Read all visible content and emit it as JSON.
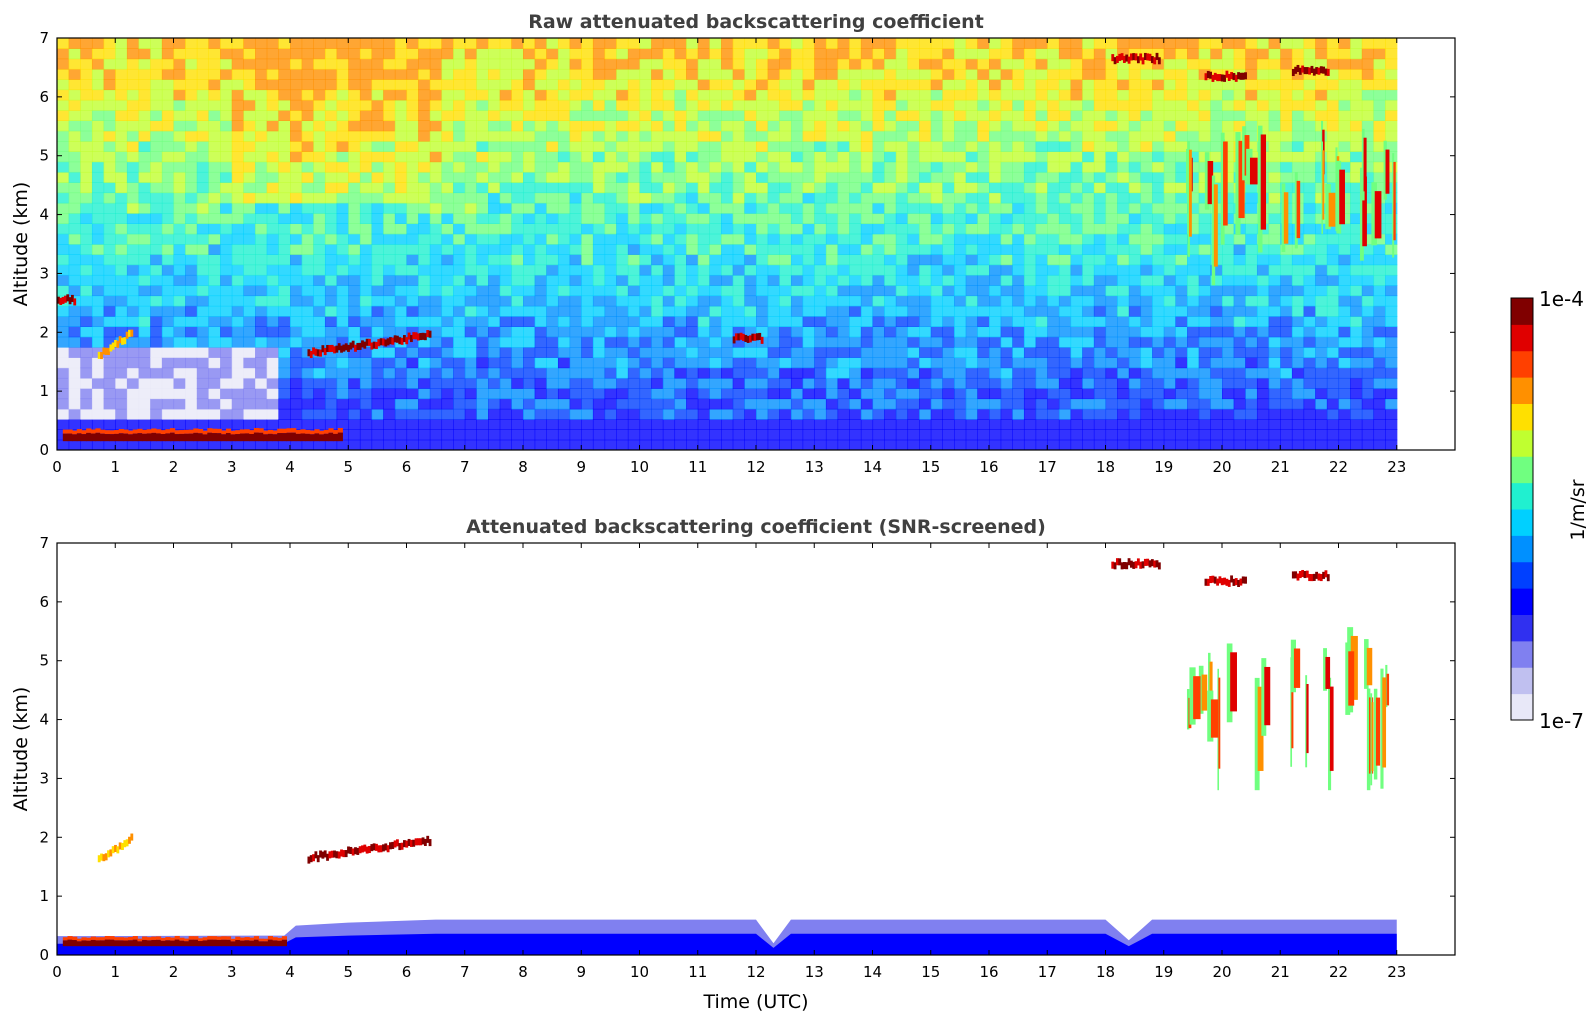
{
  "chart_data": [
    {
      "type": "heatmap",
      "title": "Raw attenuated backscattering coefficient",
      "xlabel": "",
      "ylabel": "Altitude (km)",
      "xlim": [
        0,
        24
      ],
      "ylim": [
        0,
        7
      ],
      "x_ticks": [
        "0",
        "1",
        "2",
        "3",
        "4",
        "5",
        "6",
        "7",
        "8",
        "9",
        "10",
        "11",
        "12",
        "13",
        "14",
        "15",
        "16",
        "17",
        "18",
        "19",
        "20",
        "21",
        "22",
        "23"
      ],
      "y_ticks": [
        "0",
        "1",
        "2",
        "3",
        "4",
        "5",
        "6",
        "7"
      ],
      "data_time_range": [
        0,
        23
      ],
      "grid": false,
      "features": [
        {
          "kind": "boundary_layer_aerosol",
          "t_start": 0.1,
          "t_end": 4.9,
          "alt_low": 0.15,
          "alt_high": 0.35,
          "level": "high"
        },
        {
          "kind": "low_cloud",
          "t_start": 0.0,
          "t_end": 0.3,
          "alt": 2.55,
          "level": "high"
        },
        {
          "kind": "aerosol_layer",
          "t_start": 4.3,
          "t_end": 6.4,
          "alt_start": 1.65,
          "alt_end": 1.95,
          "level": "high"
        },
        {
          "kind": "aerosol_layer",
          "t_start": 0.7,
          "t_end": 1.3,
          "alt_start": 1.6,
          "alt_end": 2.0,
          "level": "medium"
        },
        {
          "kind": "aerosol_patch",
          "t_start": 11.6,
          "t_end": 12.1,
          "alt": 1.9,
          "level": "high"
        },
        {
          "kind": "cirrus",
          "t_start": 18.1,
          "t_end": 18.9,
          "alt": 6.65,
          "level": "high"
        },
        {
          "kind": "cirrus",
          "t_start": 19.7,
          "t_end": 20.4,
          "alt": 6.35,
          "level": "high"
        },
        {
          "kind": "cirrus",
          "t_start": 21.2,
          "t_end": 21.8,
          "alt": 6.45,
          "level": "high"
        },
        {
          "kind": "cirrus_fallstreaks",
          "t_start": 19.3,
          "t_end": 23.0,
          "alt_low": 2.8,
          "alt_high": 5.6,
          "level": "high"
        }
      ],
      "colorscale": "jet"
    },
    {
      "type": "heatmap",
      "title": "Attenuated backscattering coefficient (SNR-screened)",
      "xlabel": "Time (UTC)",
      "ylabel": "Altitude (km)",
      "xlim": [
        0,
        24
      ],
      "ylim": [
        0,
        7
      ],
      "x_ticks": [
        "0",
        "1",
        "2",
        "3",
        "4",
        "5",
        "6",
        "7",
        "8",
        "9",
        "10",
        "11",
        "12",
        "13",
        "14",
        "15",
        "16",
        "17",
        "18",
        "19",
        "20",
        "21",
        "22",
        "23"
      ],
      "y_ticks": [
        "0",
        "1",
        "2",
        "3",
        "4",
        "5",
        "6",
        "7"
      ],
      "data_time_range": [
        0,
        23
      ],
      "grid": false,
      "screened_top_profile": [
        [
          0,
          0.32
        ],
        [
          3.9,
          0.33
        ],
        [
          4.1,
          0.5
        ],
        [
          5.0,
          0.55
        ],
        [
          6.5,
          0.6
        ],
        [
          12.0,
          0.6
        ],
        [
          12.3,
          0.2
        ],
        [
          12.6,
          0.6
        ],
        [
          18.0,
          0.6
        ],
        [
          18.4,
          0.25
        ],
        [
          18.8,
          0.6
        ],
        [
          23.0,
          0.6
        ]
      ],
      "features": [
        {
          "kind": "boundary_layer_aerosol",
          "t_start": 0.1,
          "t_end": 3.9,
          "alt_low": 0.15,
          "alt_high": 0.3,
          "level": "high"
        },
        {
          "kind": "aerosol_layer",
          "t_start": 4.3,
          "t_end": 6.4,
          "alt_start": 1.65,
          "alt_end": 1.95,
          "level": "high"
        },
        {
          "kind": "aerosol_layer",
          "t_start": 0.7,
          "t_end": 1.3,
          "alt_start": 1.6,
          "alt_end": 2.0,
          "level": "medium"
        },
        {
          "kind": "cirrus",
          "t_start": 18.1,
          "t_end": 18.9,
          "alt": 6.65,
          "level": "high"
        },
        {
          "kind": "cirrus",
          "t_start": 19.7,
          "t_end": 20.4,
          "alt": 6.35,
          "level": "high"
        },
        {
          "kind": "cirrus",
          "t_start": 21.2,
          "t_end": 21.8,
          "alt": 6.45,
          "level": "high"
        },
        {
          "kind": "cirrus_fallstreaks",
          "t_start": 19.3,
          "t_end": 23.0,
          "alt_low": 2.8,
          "alt_high": 5.6,
          "level": "high"
        }
      ],
      "colorscale": "jet"
    }
  ],
  "colorbar": {
    "label": "1/m/sr",
    "max_label": "1e-4",
    "min_label": "1e-7",
    "colors": [
      "#e8e8f8",
      "#c0c0f0",
      "#8080f0",
      "#3030f0",
      "#0000ff",
      "#0040ff",
      "#0090ff",
      "#00d0ff",
      "#20f0d0",
      "#70ff80",
      "#c0ff30",
      "#ffe000",
      "#ff9000",
      "#ff4000",
      "#e00000",
      "#800000"
    ]
  }
}
